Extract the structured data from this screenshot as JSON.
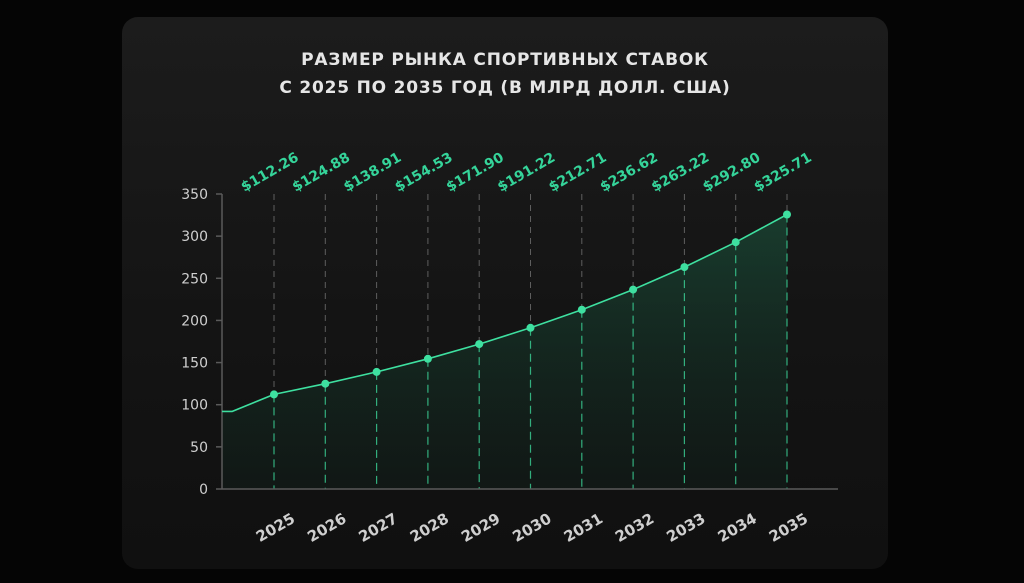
{
  "chart_data": {
    "type": "area",
    "title_line1": "РАЗМЕР РЫНКА СПОРТИВНЫХ СТАВОК",
    "title_line2": "С 2025 ПО 2035 ГОД (В МЛРД ДОЛЛ. США)",
    "categories": [
      "2025",
      "2026",
      "2027",
      "2028",
      "2029",
      "2030",
      "2031",
      "2032",
      "2033",
      "2034",
      "2035"
    ],
    "values": [
      112.26,
      124.88,
      138.91,
      154.53,
      171.9,
      191.22,
      212.71,
      236.62,
      263.22,
      292.8,
      325.71
    ],
    "value_labels": [
      "$112.26",
      "$124.88",
      "$138.91",
      "$154.53",
      "$171.90",
      "$191.22",
      "$212.71",
      "$236.62",
      "$263.22",
      "$292.80",
      "$325.71"
    ],
    "start_value": 92,
    "y_ticks": [
      "0",
      "50",
      "100",
      "150",
      "200",
      "250",
      "300",
      "350"
    ],
    "ylim": [
      0,
      350
    ],
    "grid": false,
    "colors": {
      "line": "#3ee0a0",
      "label": "#35d49a",
      "axis": "#5a5a5a",
      "text": "#cfcfcf",
      "guide": "#9a9a9a"
    }
  }
}
